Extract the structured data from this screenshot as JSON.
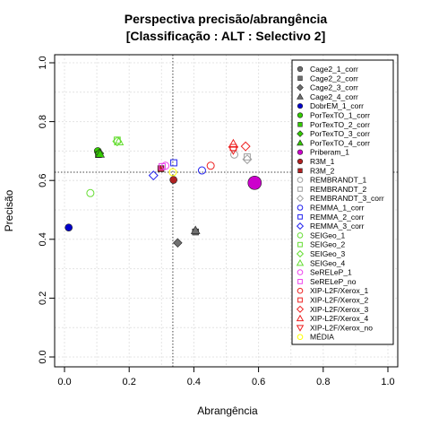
{
  "chart_data": {
    "type": "scatter",
    "title": "Perspectiva precisão/abrangência",
    "subtitle": "[Classificação : ALT : Selectivo 2]",
    "xlabel": "Abrangência",
    "ylabel": "Precisão",
    "xlim": [
      0,
      1
    ],
    "ylim": [
      0,
      1
    ],
    "xticks": [
      "0.0",
      "0.2",
      "0.4",
      "0.6",
      "0.8",
      "1.0"
    ],
    "yticks": [
      "0.0",
      "0.2",
      "0.4",
      "0.6",
      "0.8",
      "1.0"
    ],
    "grid": true,
    "legend_position": "top-right",
    "reference_lines": {
      "vertical_x": 0.335,
      "horizontal_y": 0.628
    },
    "series": [
      {
        "name": "Cage2_1_corr",
        "marker": "circle",
        "color": "#707070",
        "filled": true,
        "points": []
      },
      {
        "name": "Cage2_2_corr",
        "marker": "square",
        "color": "#707070",
        "filled": true,
        "points": [
          [
            0.405,
            0.425
          ]
        ]
      },
      {
        "name": "Cage2_3_corr",
        "marker": "diamond",
        "color": "#707070",
        "filled": true,
        "points": [
          [
            0.35,
            0.388
          ]
        ]
      },
      {
        "name": "Cage2_4_corr",
        "marker": "triangle",
        "color": "#707070",
        "filled": true,
        "points": [
          [
            0.405,
            0.43
          ]
        ]
      },
      {
        "name": "DobrEM_1_corr",
        "marker": "circle",
        "color": "#0000cc",
        "filled": true,
        "points": [
          [
            0.013,
            0.44
          ]
        ]
      },
      {
        "name": "PorTexTO_1_corr",
        "marker": "circle",
        "color": "#33cc00",
        "filled": true,
        "points": [
          [
            0.103,
            0.7
          ]
        ]
      },
      {
        "name": "PorTexTO_2_corr",
        "marker": "square",
        "color": "#33cc00",
        "filled": true,
        "points": [
          [
            0.105,
            0.688
          ]
        ]
      },
      {
        "name": "PorTexTO_3_corr",
        "marker": "diamond",
        "color": "#33cc00",
        "filled": true,
        "points": [
          [
            0.108,
            0.692
          ]
        ]
      },
      {
        "name": "PorTexTO_4_corr",
        "marker": "triangle",
        "color": "#33cc00",
        "filled": true,
        "points": [
          [
            0.11,
            0.69
          ]
        ]
      },
      {
        "name": "Priberam_1",
        "marker": "circle",
        "color": "#cc00cc",
        "filled": true,
        "points": [
          [
            0.588,
            0.592
          ]
        ]
      },
      {
        "name": "R3M_1",
        "marker": "circle",
        "color": "#b22222",
        "filled": true,
        "points": [
          [
            0.337,
            0.602
          ]
        ]
      },
      {
        "name": "R3M_2",
        "marker": "square",
        "color": "#b22222",
        "filled": true,
        "points": [
          [
            0.298,
            0.64
          ]
        ]
      },
      {
        "name": "REMBRANDT_1",
        "marker": "circle",
        "color": "#a0a0a0",
        "filled": false,
        "points": [
          [
            0.525,
            0.688
          ]
        ]
      },
      {
        "name": "REMBRANDT_2",
        "marker": "square",
        "color": "#a0a0a0",
        "filled": false,
        "points": [
          [
            0.565,
            0.68
          ]
        ]
      },
      {
        "name": "REMBRANDT_3_corr",
        "marker": "diamond",
        "color": "#a0a0a0",
        "filled": false,
        "points": [
          [
            0.565,
            0.672
          ]
        ]
      },
      {
        "name": "REMMA_1_corr",
        "marker": "circle",
        "color": "#2222ee",
        "filled": false,
        "points": [
          [
            0.425,
            0.634
          ]
        ]
      },
      {
        "name": "REMMA_2_corr",
        "marker": "square",
        "color": "#2222ee",
        "filled": false,
        "points": [
          [
            0.338,
            0.66
          ]
        ]
      },
      {
        "name": "REMMA_3_corr",
        "marker": "diamond",
        "color": "#2222ee",
        "filled": false,
        "points": [
          [
            0.275,
            0.617
          ]
        ]
      },
      {
        "name": "SEIGeo_1",
        "marker": "circle",
        "color": "#66dd33",
        "filled": false,
        "points": [
          [
            0.08,
            0.557
          ]
        ]
      },
      {
        "name": "SEIGeo_2",
        "marker": "square",
        "color": "#66dd33",
        "filled": false,
        "points": [
          [
            0.163,
            0.737
          ]
        ]
      },
      {
        "name": "SEIGeo_3",
        "marker": "diamond",
        "color": "#66dd33",
        "filled": false,
        "points": [
          [
            0.163,
            0.733
          ]
        ]
      },
      {
        "name": "SEIGeo_4",
        "marker": "triangle",
        "color": "#66dd33",
        "filled": false,
        "points": [
          [
            0.168,
            0.732
          ]
        ]
      },
      {
        "name": "SeRELeP_1",
        "marker": "circle",
        "color": "#ee44ee",
        "filled": false,
        "points": [
          [
            0.312,
            0.65
          ]
        ]
      },
      {
        "name": "SeRELeP_no",
        "marker": "square",
        "color": "#ee44ee",
        "filled": false,
        "points": [
          [
            0.302,
            0.647
          ]
        ]
      },
      {
        "name": "XIP-L2F/Xerox_1",
        "marker": "circle",
        "color": "#ee2222",
        "filled": false,
        "points": [
          [
            0.452,
            0.65
          ]
        ]
      },
      {
        "name": "XIP-L2F/Xerox_2",
        "marker": "square",
        "color": "#ee2222",
        "filled": false,
        "points": [
          [
            0.522,
            0.712
          ]
        ]
      },
      {
        "name": "XIP-L2F/Xerox_3",
        "marker": "diamond",
        "color": "#ee2222",
        "filled": false,
        "points": [
          [
            0.56,
            0.716
          ]
        ]
      },
      {
        "name": "XIP-L2F/Xerox_4",
        "marker": "triangle",
        "color": "#ee2222",
        "filled": false,
        "points": [
          [
            0.522,
            0.724
          ]
        ]
      },
      {
        "name": "XIP-L2F/Xerox_no",
        "marker": "triangle-down",
        "color": "#ee2222",
        "filled": false,
        "points": [
          [
            0.522,
            0.704
          ]
        ]
      },
      {
        "name": "MÉDIA",
        "marker": "circle",
        "color": "#ffff00",
        "filled": false,
        "points": [
          [
            0.335,
            0.628
          ]
        ]
      }
    ]
  }
}
